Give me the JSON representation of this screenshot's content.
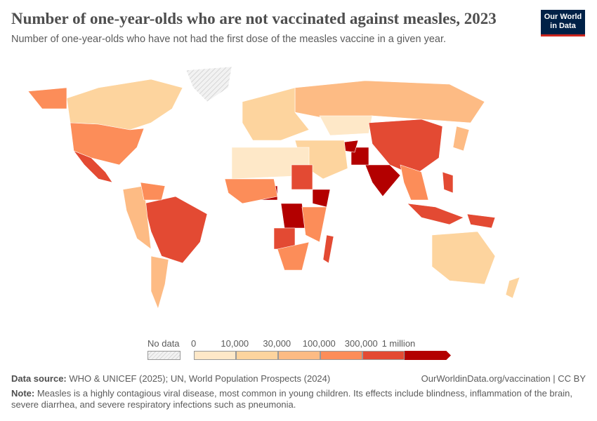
{
  "header": {
    "title": "Number of one-year-olds who are not vaccinated against measles, 2023",
    "subtitle": "Number of one-year-olds who have not had the first dose of the measles vaccine in a given year."
  },
  "logo": {
    "line1": "Our World",
    "line2": "in Data"
  },
  "legend": {
    "no_data_label": "No data",
    "ticks": [
      "0",
      "10,000",
      "30,000",
      "100,000",
      "300,000",
      "1 million"
    ],
    "colors": [
      "#fee8c8",
      "#fdd49e",
      "#fdbb84",
      "#fc8d59",
      "#e34a33",
      "#b30000"
    ],
    "no_data_color": "#e8e8e8"
  },
  "map_data": {
    "bins": [
      "0–10,000",
      "10,000–30,000",
      "30,000–100,000",
      "100,000–300,000",
      "300,000–1 million",
      "1 million+"
    ],
    "countries": [
      {
        "name": "Canada",
        "bin": 1
      },
      {
        "name": "United States",
        "bin": 3
      },
      {
        "name": "Mexico",
        "bin": 4
      },
      {
        "name": "Greenland",
        "bin": -1
      },
      {
        "name": "Alaska",
        "bin": 3
      },
      {
        "name": "Brazil",
        "bin": 4
      },
      {
        "name": "Argentina",
        "bin": 2
      },
      {
        "name": "Colombia/Peru",
        "bin": 2
      },
      {
        "name": "Venezuela",
        "bin": 3
      },
      {
        "name": "Russia",
        "bin": 2
      },
      {
        "name": "Europe",
        "bin": 1
      },
      {
        "name": "Kazakhstan",
        "bin": 0
      },
      {
        "name": "China",
        "bin": 4
      },
      {
        "name": "India",
        "bin": 5
      },
      {
        "name": "Pakistan",
        "bin": 5
      },
      {
        "name": "Afghanistan",
        "bin": 5
      },
      {
        "name": "Middle East",
        "bin": 1
      },
      {
        "name": "Southeast Asia",
        "bin": 3
      },
      {
        "name": "Indonesia",
        "bin": 4
      },
      {
        "name": "Philippines",
        "bin": 4
      },
      {
        "name": "Papua New Guinea",
        "bin": 4
      },
      {
        "name": "Japan",
        "bin": 2
      },
      {
        "name": "North Africa",
        "bin": 0
      },
      {
        "name": "Nigeria",
        "bin": 5
      },
      {
        "name": "DR Congo",
        "bin": 5
      },
      {
        "name": "Ethiopia",
        "bin": 5
      },
      {
        "name": "Sudan",
        "bin": 4
      },
      {
        "name": "Angola",
        "bin": 4
      },
      {
        "name": "West Africa",
        "bin": 3
      },
      {
        "name": "East Africa",
        "bin": 3
      },
      {
        "name": "Madagascar",
        "bin": 4
      },
      {
        "name": "Southern Africa",
        "bin": 3
      },
      {
        "name": "Australia",
        "bin": 1
      },
      {
        "name": "New Zealand",
        "bin": 1
      }
    ]
  },
  "footer": {
    "source_label": "Data source:",
    "source_text": "WHO & UNICEF (2025); UN, World Population Prospects (2024)",
    "url": "OurWorldinData.org/vaccination | CC BY",
    "note_label": "Note:",
    "note_text": "Measles is a highly contagious viral disease, most common in young children. Its effects include blindness, inflammation of the brain, severe diarrhea, and severe respiratory infections such as pneumonia."
  }
}
